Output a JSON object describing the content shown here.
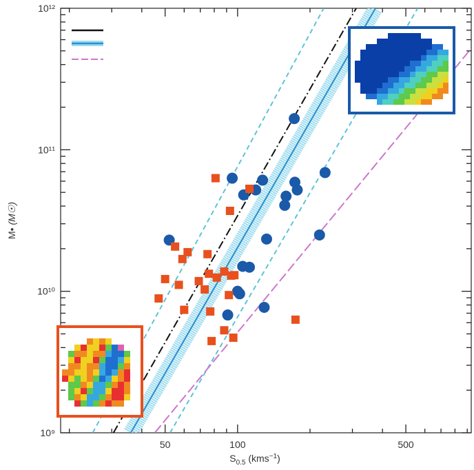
{
  "chart_data": {
    "type": "scatter",
    "xscale": "log",
    "yscale": "log",
    "xlim": [
      18.4,
      935
    ],
    "ylim": [
      1000000000.0,
      1000000000000.0
    ],
    "xticks": [
      50,
      100,
      500
    ],
    "xminorticks": [
      20,
      30,
      40,
      60,
      70,
      80,
      90,
      200,
      300,
      400,
      600,
      700,
      800,
      900
    ],
    "yticks": [
      {
        "value": 1000000000.0,
        "label": "10⁹"
      },
      {
        "value": 10000000000.0,
        "label": "10¹⁰"
      },
      {
        "value": 100000000000.0,
        "label": "10¹¹"
      },
      {
        "value": 1000000000000.0,
        "label": "10¹²"
      }
    ],
    "yminorticks": [
      2000000000.0,
      3000000000.0,
      4000000000.0,
      5000000000.0,
      6000000000.0,
      7000000000.0,
      8000000000.0,
      9000000000.0,
      20000000000.0,
      30000000000.0,
      40000000000.0,
      50000000000.0,
      60000000000.0,
      70000000000.0,
      80000000000.0,
      90000000000.0,
      200000000000.0,
      300000000000.0,
      400000000000.0,
      500000000000.0,
      600000000000.0,
      700000000000.0,
      800000000000.0,
      900000000000.0
    ],
    "xlabel": {
      "symbol": "S",
      "subscript": "0.5",
      "unit": " (kms",
      "exponent": "−1",
      "close": ")"
    },
    "ylabel": {
      "symbol": "M•",
      "unit": "(M☉)"
    },
    "series": [
      {
        "color": "#1a5aa8",
        "marker": "circle",
        "x": [
          172,
          231,
          95,
          173,
          127,
          119,
          177,
          106,
          159,
          157,
          52,
          132,
          219,
          105,
          112,
          100,
          102,
          129,
          91
        ],
        "y": [
          166000000000.0,
          69000000000.0,
          63000000000.0,
          59000000000.0,
          61000000000.0,
          52000000000.0,
          52000000000.0,
          48000000000.0,
          47000000000.0,
          40500000000.0,
          23000000000.0,
          23400000000.0,
          25000000000.0,
          15000000000.0,
          14800000000.0,
          10000000000.0,
          9600000000.0,
          7700000000.0,
          6800000000.0
        ]
      },
      {
        "color": "#e8501e",
        "marker": "square",
        "x": [
          81,
          112,
          93,
          55,
          62,
          59,
          88,
          75,
          76,
          82,
          94,
          97,
          69,
          50,
          57,
          73,
          47,
          92,
          60,
          77,
          174,
          88,
          96,
          78
        ],
        "y": [
          63000000000.0,
          53000000000.0,
          37000000000.0,
          20700000000.0,
          18900000000.0,
          16900000000.0,
          13800000000.0,
          18300000000.0,
          13300000000.0,
          12500000000.0,
          12900000000.0,
          13000000000.0,
          11800000000.0,
          12200000000.0,
          11100000000.0,
          10300000000.0,
          8900000000.0,
          9400000000.0,
          7400000000.0,
          7200000000.0,
          6300000000.0,
          5300000000.0,
          4700000000.0,
          4450000000.0
        ]
      }
    ],
    "lines": [
      {
        "color": "#5bc4d8",
        "style": "dashed",
        "x": [
          25,
          228
        ],
        "y": [
          1000000000.0,
          1000000000000.0
        ]
      },
      {
        "color": "#5bc4d8",
        "style": "dashed",
        "x": [
          52.4,
          560
        ],
        "y": [
          1000000000.0,
          1000000000000.0
        ]
      },
      {
        "color": "#111111",
        "style": "dashdot",
        "x": [
          30.5,
          311
        ],
        "y": [
          1000000000.0,
          1000000000000.0
        ]
      },
      {
        "color": "#cc77cc",
        "style": "longdash",
        "x": [
          45.3,
          935
        ],
        "y": [
          1000000000.0,
          520000000000.0
        ]
      },
      {
        "color": "#2a8fcf",
        "style": "solid",
        "band": "#9fdcef",
        "x": [
          36,
          374
        ],
        "y": [
          1000000000.0,
          1000000000000.0
        ]
      }
    ]
  }
}
